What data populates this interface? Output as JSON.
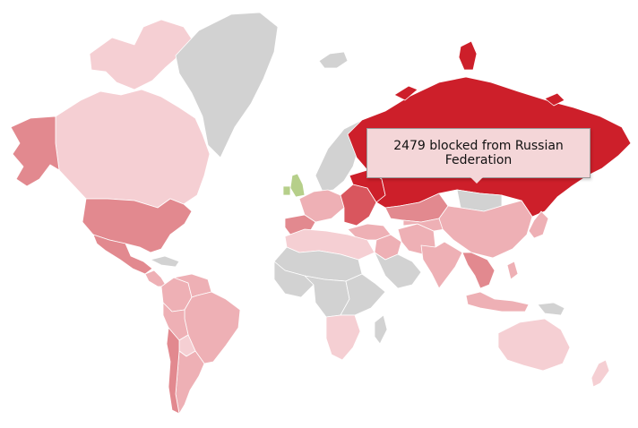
{
  "tooltip": {
    "country": "Russian Federation",
    "value": 2479,
    "text": "2479 blocked from Russian Federation"
  },
  "colors": {
    "no_data": "#d2d2d2",
    "level_1": "#f5cfd3",
    "level_2": "#eeb0b5",
    "level_3": "#e2898f",
    "level_4": "#d9565e",
    "level_5": "#d6303a",
    "level_max": "#cd1f2a",
    "highlight": "#b6cf8a"
  },
  "regions": [
    {
      "name": "canada-region",
      "level": "level_1"
    },
    {
      "name": "canada-arctic-islands-region",
      "level": "level_1"
    },
    {
      "name": "alaska-region",
      "level": "level_3"
    },
    {
      "name": "united-states-region",
      "level": "level_3"
    },
    {
      "name": "mexico-region",
      "level": "level_3"
    },
    {
      "name": "central-america-region",
      "level": "level_2"
    },
    {
      "name": "caribbean-region",
      "level": "no_data"
    },
    {
      "name": "greenland-region",
      "level": "no_data"
    },
    {
      "name": "iceland-region",
      "level": "no_data"
    },
    {
      "name": "colombia-region",
      "level": "level_2"
    },
    {
      "name": "venezuela-region",
      "level": "level_2"
    },
    {
      "name": "brazil-region",
      "level": "level_2"
    },
    {
      "name": "peru-region",
      "level": "level_2"
    },
    {
      "name": "bolivia-region",
      "level": "level_1"
    },
    {
      "name": "argentina-region",
      "level": "level_2"
    },
    {
      "name": "chile-region",
      "level": "level_3"
    },
    {
      "name": "united-kingdom-region",
      "level": "highlight"
    },
    {
      "name": "ireland-region",
      "level": "highlight"
    },
    {
      "name": "scandinavia-region",
      "level": "no_data"
    },
    {
      "name": "western-europe-region",
      "level": "level_2"
    },
    {
      "name": "iberia-region",
      "level": "level_3"
    },
    {
      "name": "eastern-europe-region",
      "level": "level_4"
    },
    {
      "name": "ukraine-region",
      "level": "level_max"
    },
    {
      "name": "russian-federation-region",
      "level": "level_max"
    },
    {
      "name": "russian-arctic-islands-region",
      "level": "level_max"
    },
    {
      "name": "turkey-region",
      "level": "level_2"
    },
    {
      "name": "north-africa-region",
      "level": "level_1"
    },
    {
      "name": "sahara-region",
      "level": "no_data"
    },
    {
      "name": "west-africa-region",
      "level": "no_data"
    },
    {
      "name": "central-africa-region",
      "level": "no_data"
    },
    {
      "name": "east-africa-region",
      "level": "no_data"
    },
    {
      "name": "southern-africa-region",
      "level": "level_1"
    },
    {
      "name": "madagascar-region",
      "level": "no_data"
    },
    {
      "name": "middle-east-region",
      "level": "level_2"
    },
    {
      "name": "arabian-peninsula-region",
      "level": "no_data"
    },
    {
      "name": "iran-region",
      "level": "level_2"
    },
    {
      "name": "kazakhstan-region",
      "level": "level_3"
    },
    {
      "name": "central-asia-region",
      "level": "level_2"
    },
    {
      "name": "mongolia-region",
      "level": "no_data"
    },
    {
      "name": "china-region",
      "level": "level_2"
    },
    {
      "name": "india-region",
      "level": "level_2"
    },
    {
      "name": "southeast-asia-region",
      "level": "level_3"
    },
    {
      "name": "japan-region",
      "level": "level_2"
    },
    {
      "name": "indonesia-region",
      "level": "level_2"
    },
    {
      "name": "philippines-region",
      "level": "level_2"
    },
    {
      "name": "papua-region",
      "level": "no_data"
    },
    {
      "name": "australia-region",
      "level": "level_1"
    },
    {
      "name": "new-zealand-region",
      "level": "level_1"
    }
  ]
}
